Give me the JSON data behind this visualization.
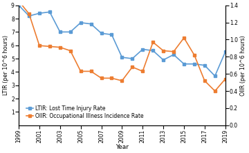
{
  "years": [
    1999,
    2000,
    2001,
    2002,
    2003,
    2004,
    2005,
    2006,
    2007,
    2008,
    2009,
    2010,
    2011,
    2012,
    2013,
    2014,
    2015,
    2016,
    2017,
    2018,
    2019
  ],
  "ltir": [
    9.0,
    8.2,
    8.4,
    8.5,
    7.0,
    7.0,
    7.7,
    7.6,
    6.9,
    6.8,
    5.1,
    5.0,
    5.7,
    5.6,
    4.9,
    5.3,
    4.6,
    4.6,
    4.5,
    3.7,
    5.5
  ],
  "oiir": [
    1.45,
    1.3,
    0.93,
    0.92,
    0.91,
    0.87,
    0.63,
    0.63,
    0.55,
    0.55,
    0.52,
    0.68,
    0.63,
    0.97,
    0.87,
    0.86,
    1.02,
    0.82,
    0.52,
    0.4,
    0.54
  ],
  "ltir_color": "#5b9bd5",
  "oiir_color": "#ed7d31",
  "ltir_label": "LTIR: Lost Time Injury Rate",
  "oiir_label": "OIIR: Occupational Illness Incidence Rate",
  "xlabel": "Year",
  "ylabel_left": "LTIR (per 10^6 hours)",
  "ylabel_right": "OIIR (per 10^6 hours)",
  "ylim_left": [
    0,
    9
  ],
  "ylim_right": [
    0.0,
    1.4
  ],
  "xlim": [
    1999,
    2019
  ],
  "xticks": [
    1999,
    2001,
    2003,
    2005,
    2007,
    2009,
    2011,
    2013,
    2015,
    2017,
    2019
  ],
  "yticks_left": [
    1,
    2,
    3,
    4,
    5,
    6,
    7,
    8,
    9
  ],
  "yticks_right": [
    0.0,
    0.2,
    0.4,
    0.6,
    0.8,
    1.0,
    1.2,
    1.4
  ],
  "background_color": "#ffffff",
  "linewidth": 1.2,
  "marker": "s",
  "markersize": 2.5,
  "tick_fontsize": 5.5,
  "label_fontsize": 5.8,
  "legend_fontsize": 5.5,
  "xlabel_fontsize": 6.5
}
